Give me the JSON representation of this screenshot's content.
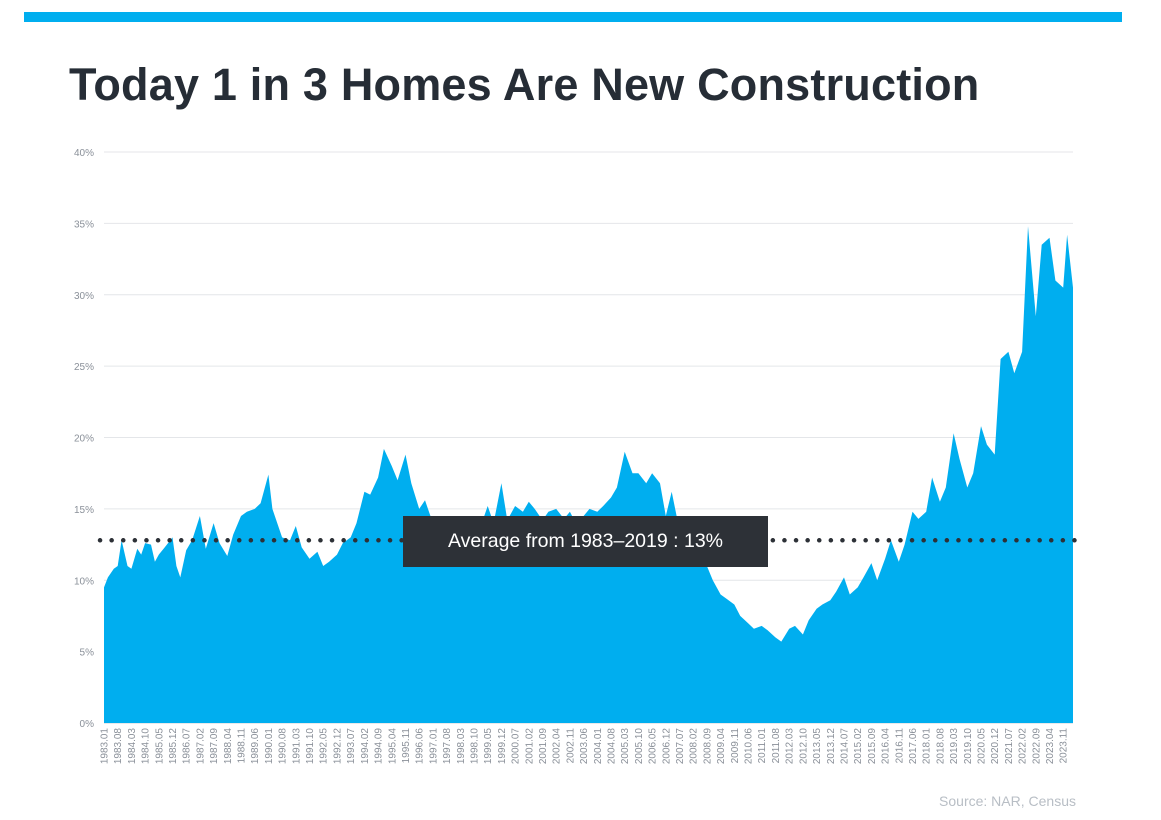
{
  "header": {
    "title": "Today 1 in 3 Homes Are New Construction",
    "accent_color": "#00aeef"
  },
  "footer": {
    "source": "Source: NAR, Census"
  },
  "chart_data": {
    "type": "area",
    "title": "Today 1 in 3 Homes Are New Construction",
    "xlabel": "",
    "ylabel": "",
    "ylim": [
      0,
      40
    ],
    "y_tick_labels": [
      "0%",
      "5%",
      "10%",
      "15%",
      "20%",
      "25%",
      "30%",
      "35%",
      "40%"
    ],
    "y_tick_values": [
      0,
      5,
      10,
      15,
      20,
      25,
      30,
      35,
      40
    ],
    "grid": "horizontal",
    "x_range": [
      "1983.01",
      "2024.04"
    ],
    "x_tick_labels": [
      "1983.01",
      "1983.08",
      "1984.03",
      "1984.10",
      "1985.05",
      "1985.12",
      "1986.07",
      "1987.02",
      "1987.09",
      "1988.04",
      "1988.11",
      "1989.06",
      "1990.01",
      "1990.08",
      "1991.03",
      "1991.10",
      "1992.05",
      "1992.12",
      "1993.07",
      "1994.02",
      "1994.09",
      "1995.04",
      "1995.11",
      "1996.06",
      "1997.01",
      "1997.08",
      "1998.03",
      "1998.10",
      "1999.05",
      "1999.12",
      "2000.07",
      "2001.02",
      "2001.09",
      "2002.04",
      "2002.11",
      "2003.06",
      "2004.01",
      "2004.08",
      "2005.03",
      "2005.10",
      "2006.05",
      "2006.12",
      "2007.07",
      "2008.02",
      "2008.09",
      "2009.04",
      "2009.11",
      "2010.06",
      "2011.01",
      "2011.08",
      "2012.03",
      "2012.10",
      "2013.05",
      "2013.12",
      "2014.07",
      "2015.02",
      "2015.09",
      "2016.04",
      "2016.11",
      "2017.06",
      "2018.01",
      "2018.08",
      "2019.03",
      "2019.10",
      "2020.05",
      "2020.12",
      "2021.07",
      "2022.02",
      "2022.09",
      "2023.04",
      "2023.11"
    ],
    "series": [
      {
        "color": "#00aeef",
        "x": [
          "1983.01",
          "1983.03",
          "1983.06",
          "1983.08",
          "1983.10",
          "1984.01",
          "1984.03",
          "1984.06",
          "1984.08",
          "1984.10",
          "1985.01",
          "1985.03",
          "1985.05",
          "1985.08",
          "1985.12",
          "1986.02",
          "1986.04",
          "1986.07",
          "1986.10",
          "1987.02",
          "1987.05",
          "1987.09",
          "1987.12",
          "1988.04",
          "1988.07",
          "1988.11",
          "1989.02",
          "1989.06",
          "1989.09",
          "1990.01",
          "1990.03",
          "1990.08",
          "1990.12",
          "1991.03",
          "1991.06",
          "1991.10",
          "1992.02",
          "1992.05",
          "1992.08",
          "1992.12",
          "1993.03",
          "1993.07",
          "1993.10",
          "1994.02",
          "1994.05",
          "1994.09",
          "1994.12",
          "1995.04",
          "1995.07",
          "1995.11",
          "1996.02",
          "1996.06",
          "1996.09",
          "1997.01",
          "1997.06",
          "1997.08",
          "1997.12",
          "1998.03",
          "1998.07",
          "1998.10",
          "1999.02",
          "1999.05",
          "1999.08",
          "1999.12",
          "2000.03",
          "2000.07",
          "2000.11",
          "2001.02",
          "2001.05",
          "2001.09",
          "2001.12",
          "2002.04",
          "2002.08",
          "2002.11",
          "2003.02",
          "2003.06",
          "2003.09",
          "2004.01",
          "2004.04",
          "2004.08",
          "2004.11",
          "2005.03",
          "2005.07",
          "2005.10",
          "2006.02",
          "2006.05",
          "2006.09",
          "2006.12",
          "2007.03",
          "2007.07",
          "2007.10",
          "2008.02",
          "2008.05",
          "2008.09",
          "2008.12",
          "2009.04",
          "2009.07",
          "2009.11",
          "2010.02",
          "2010.06",
          "2010.09",
          "2011.01",
          "2011.04",
          "2011.08",
          "2011.11",
          "2012.03",
          "2012.06",
          "2012.10",
          "2013.01",
          "2013.05",
          "2013.08",
          "2013.12",
          "2014.03",
          "2014.07",
          "2014.10",
          "2015.02",
          "2015.05",
          "2015.09",
          "2015.12",
          "2016.04",
          "2016.07",
          "2016.11",
          "2017.02",
          "2017.06",
          "2017.09",
          "2018.01",
          "2018.04",
          "2018.08",
          "2018.11",
          "2019.03",
          "2019.06",
          "2019.10",
          "2020.01",
          "2020.05",
          "2020.08",
          "2020.12",
          "2021.03",
          "2021.07",
          "2021.10",
          "2022.02",
          "2022.05",
          "2022.09",
          "2022.12",
          "2023.04",
          "2023.07",
          "2023.11",
          "2024.01",
          "2024.04"
        ],
        "values": [
          9.5,
          10.2,
          10.8,
          11.0,
          12.8,
          11.0,
          10.8,
          12.2,
          11.8,
          12.6,
          12.5,
          11.3,
          11.8,
          12.3,
          13.0,
          11.0,
          10.2,
          12.1,
          12.8,
          14.5,
          12.2,
          14.0,
          12.6,
          11.7,
          13.2,
          14.5,
          14.8,
          15.0,
          15.4,
          17.4,
          15.0,
          13.0,
          12.8,
          13.8,
          12.3,
          11.5,
          12.0,
          11.0,
          11.3,
          11.8,
          12.6,
          13.0,
          14.0,
          16.2,
          16.0,
          17.2,
          19.2,
          18.0,
          17.0,
          18.8,
          16.8,
          15.0,
          15.6,
          14.0,
          12.5,
          13.2,
          14.0,
          13.8,
          14.2,
          14.5,
          14.0,
          15.2,
          14.0,
          16.8,
          14.2,
          15.2,
          14.8,
          15.5,
          15.0,
          14.2,
          14.8,
          15.0,
          14.3,
          14.8,
          14.0,
          14.5,
          15.0,
          14.8,
          15.2,
          15.8,
          16.5,
          19.0,
          17.5,
          17.5,
          16.8,
          17.5,
          16.8,
          14.5,
          16.2,
          13.5,
          13.8,
          12.5,
          11.8,
          11.0,
          10.0,
          9.0,
          8.7,
          8.3,
          7.5,
          7.0,
          6.6,
          6.8,
          6.5,
          6.0,
          5.7,
          6.6,
          6.8,
          6.2,
          7.2,
          8.0,
          8.3,
          8.6,
          9.2,
          10.2,
          9.0,
          9.5,
          10.2,
          11.2,
          10.0,
          11.5,
          12.8,
          11.3,
          12.5,
          14.8,
          14.3,
          14.8,
          17.2,
          15.5,
          16.5,
          20.3,
          18.5,
          16.5,
          17.5,
          20.8,
          19.5,
          18.8,
          25.5,
          26.0,
          24.5,
          26.0,
          34.8,
          28.5,
          33.5,
          34.0,
          31.0,
          30.5,
          34.2,
          30.5
        ]
      }
    ],
    "reference_line": {
      "value": 12.8,
      "label": "Average from 1983–2019 : 13%",
      "style": "dotted",
      "color": "#2d3137"
    },
    "annotations": [
      "Average from 1983–2019 : 13%"
    ]
  }
}
